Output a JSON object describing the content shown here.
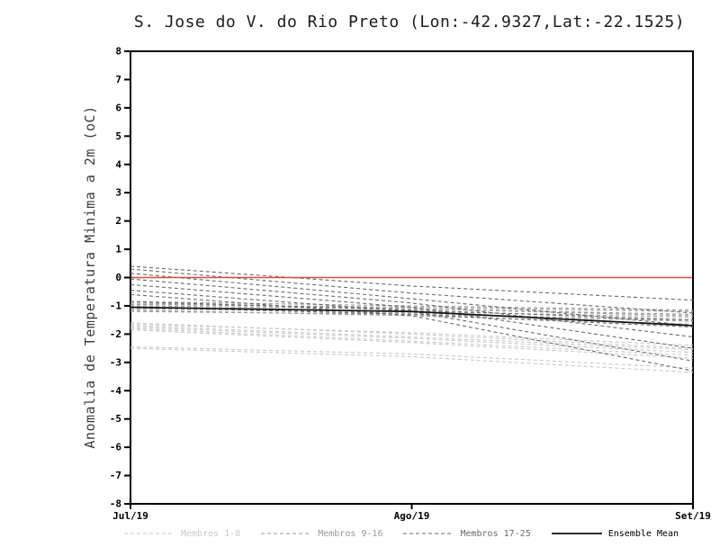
{
  "chart_data": {
    "type": "line",
    "title": "S. Jose do V. do Rio Preto (Lon:-42.9327,Lat:-22.1525)",
    "ylabel": "Anomalia de Temperatura Minima a 2m (oC)",
    "xlabel": "",
    "ylim": [
      -8,
      8
    ],
    "ytick_step": 1,
    "grid": false,
    "x_categories": [
      "Jul/19",
      "Ago/19",
      "Set/19"
    ],
    "zero_line": {
      "value": 0,
      "color": "#e04848"
    },
    "axis_color": "#000000",
    "groups": [
      {
        "name": "Membros 1-8",
        "color": "#c9c9c9",
        "style": "dashed",
        "members": [
          [
            -1.7,
            -2.1,
            -2.55
          ],
          [
            -1.8,
            -2.25,
            -2.75
          ],
          [
            -2.5,
            -2.8,
            -3.35
          ],
          [
            -1.65,
            -1.95,
            -2.4
          ],
          [
            -1.75,
            -2.15,
            -2.65
          ],
          [
            -2.45,
            -2.7,
            -3.2
          ],
          [
            -1.6,
            -2.0,
            -2.5
          ],
          [
            -1.85,
            -2.3,
            -2.85
          ]
        ]
      },
      {
        "name": "Membros 9-16",
        "color": "#9a9a9a",
        "style": "dashed",
        "members": [
          [
            -0.85,
            -1.0,
            -1.15
          ],
          [
            -0.95,
            -1.05,
            -1.2
          ],
          [
            -1.0,
            -1.1,
            -1.3
          ],
          [
            -1.1,
            -1.2,
            -1.4
          ],
          [
            -1.2,
            -1.3,
            -1.5
          ],
          [
            -0.9,
            -1.1,
            -1.35
          ],
          [
            -1.05,
            -1.25,
            -1.55
          ],
          [
            -1.15,
            -1.35,
            -1.65
          ]
        ]
      },
      {
        "name": "Membros 17-25",
        "color": "#6b6b6b",
        "style": "dashed",
        "members": [
          [
            0.4,
            -0.3,
            -0.8
          ],
          [
            0.3,
            -0.55,
            -1.25
          ],
          [
            0.15,
            -0.75,
            -1.7
          ],
          [
            -0.05,
            -0.9,
            -2.1
          ],
          [
            -0.25,
            -1.05,
            -2.5
          ],
          [
            -0.45,
            -1.2,
            -2.95
          ],
          [
            -0.6,
            -1.35,
            -3.3
          ],
          [
            -0.85,
            -1.15,
            -1.5
          ],
          [
            -1.05,
            -1.3,
            -1.75
          ]
        ]
      }
    ],
    "ensemble_mean": {
      "name": "Ensemble Mean",
      "color": "#111111",
      "style": "solid",
      "values": [
        -1.05,
        -1.2,
        -1.7
      ]
    },
    "legend": [
      {
        "label": "Membros 1-8",
        "color": "#c9c9c9",
        "style": "dashed"
      },
      {
        "label": "Membros 9-16",
        "color": "#9a9a9a",
        "style": "dashed"
      },
      {
        "label": "Membros 17-25",
        "color": "#6b6b6b",
        "style": "dashed"
      },
      {
        "label": "Ensemble Mean",
        "color": "#111111",
        "style": "solid"
      }
    ]
  }
}
